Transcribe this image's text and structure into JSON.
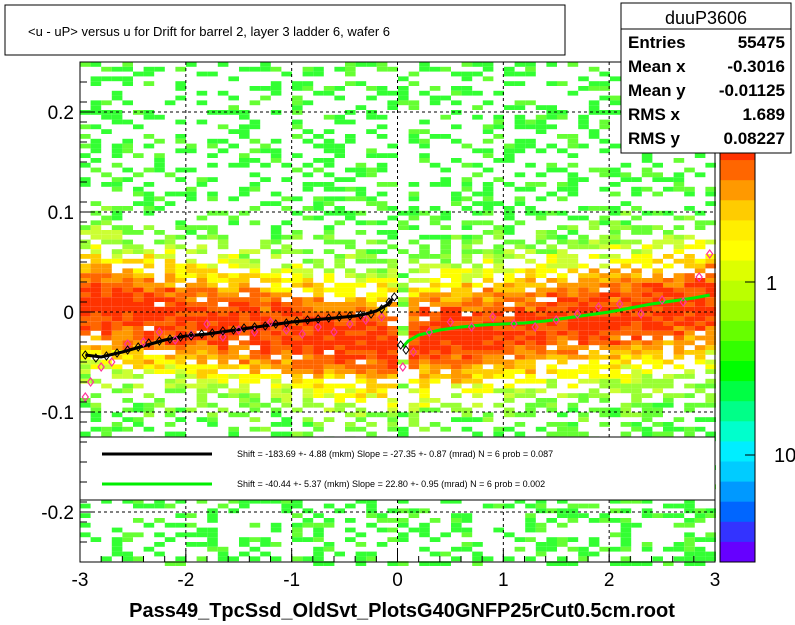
{
  "chart_data": {
    "type": "heatmap",
    "title": "<u - uP>       versus   u for Drift for barrel 2, layer 3 ladder 6, wafer 6",
    "xlabel": "Pass49_TpcSsd_OldSvt_PlotsG40GNFP25rCut0.5cm.root",
    "ylabel": "",
    "xlim": [
      -3,
      3
    ],
    "ylim": [
      -0.25,
      0.25
    ],
    "x_ticks": [
      "-3",
      "-2",
      "-1",
      "0",
      "1",
      "2",
      "3"
    ],
    "y_ticks": [
      "-0.2",
      "-0.1",
      "0",
      "0.1",
      "0.2"
    ],
    "x_tick_values": [
      -3,
      -2,
      -1,
      0,
      1,
      2,
      3
    ],
    "y_tick_values": [
      -0.2,
      -0.1,
      0,
      0.1,
      0.2
    ],
    "grid": true,
    "log_z": true,
    "color_scale_labels": [
      "1",
      "10"
    ],
    "color_scale_label_values": [
      1,
      10
    ],
    "color_scale_partial_label": "0",
    "stats": {
      "name": "duuP3606",
      "rows": [
        {
          "label": "Entries",
          "value": "55475"
        },
        {
          "label": "Mean x",
          "value": "-0.3016"
        },
        {
          "label": "Mean y",
          "value": "-0.01125"
        },
        {
          "label": "RMS x",
          "value": "1.689"
        },
        {
          "label": "RMS y",
          "value": "0.08227"
        }
      ]
    },
    "fits": [
      {
        "color": "#000000",
        "text": "Shift =  -183.69 +- 4.88 (mkm) Slope =   -27.35 +- 0.87 (mrad)  N = 6 prob = 0.087"
      },
      {
        "color": "#00ee00",
        "text": "Shift =   -40.44 +- 5.37 (mkm) Slope =    22.80 +- 0.95 (mrad)  N = 6 prob = 0.002"
      }
    ],
    "series": [
      {
        "color": "#000000",
        "x": [
          -2.95,
          -2.8,
          -2.6,
          -2.4,
          -2.2,
          -2.0,
          -1.8,
          -1.6,
          -1.4,
          -1.2,
          -1.0,
          -0.8,
          -0.6,
          -0.4,
          -0.3,
          -0.2,
          -0.1,
          -0.05
        ],
        "y": [
          -0.043,
          -0.045,
          -0.04,
          -0.034,
          -0.028,
          -0.024,
          -0.022,
          -0.019,
          -0.016,
          -0.013,
          -0.01,
          -0.008,
          -0.006,
          -0.004,
          -0.002,
          0.001,
          0.007,
          0.013
        ]
      },
      {
        "color": "#00ee00",
        "x": [
          0.05,
          0.1,
          0.2,
          0.4,
          0.6,
          0.8,
          1.0,
          1.2,
          1.4,
          1.6,
          1.8,
          2.0,
          2.2,
          2.4,
          2.6,
          2.8,
          2.95
        ],
        "y": [
          -0.035,
          -0.029,
          -0.023,
          -0.018,
          -0.015,
          -0.013,
          -0.012,
          -0.011,
          -0.009,
          -0.006,
          -0.003,
          0.0,
          0.004,
          0.008,
          0.011,
          0.014,
          0.017
        ]
      }
    ],
    "markers_black": {
      "x": [
        -2.95,
        -2.85,
        -2.75,
        -2.65,
        -2.55,
        -2.45,
        -2.35,
        -2.25,
        -2.15,
        -2.05,
        -1.95,
        -1.85,
        -1.75,
        -1.65,
        -1.55,
        -1.45,
        -1.35,
        -1.25,
        -1.15,
        -1.05,
        -0.95,
        -0.85,
        -0.75,
        -0.65,
        -0.55,
        -0.45,
        -0.35,
        -0.25,
        -0.15,
        -0.08,
        -0.03,
        0.03,
        0.08
      ],
      "y": [
        -0.043,
        -0.046,
        -0.044,
        -0.041,
        -0.038,
        -0.035,
        -0.031,
        -0.029,
        -0.027,
        -0.025,
        -0.024,
        -0.022,
        -0.021,
        -0.019,
        -0.018,
        -0.016,
        -0.015,
        -0.014,
        -0.012,
        -0.011,
        -0.009,
        -0.008,
        -0.007,
        -0.006,
        -0.005,
        -0.004,
        -0.003,
        -0.002,
        0.003,
        0.01,
        0.015,
        -0.033,
        -0.038
      ]
    },
    "markers_pink": {
      "x": [
        -2.95,
        -2.9,
        -2.8,
        -2.7,
        -2.55,
        -2.4,
        -2.25,
        -2.1,
        -1.95,
        -1.8,
        -1.65,
        -1.5,
        -1.35,
        -1.2,
        -1.05,
        -0.9,
        -0.75,
        -0.6,
        -0.45,
        -0.3,
        -0.15,
        0.05,
        0.15,
        0.3,
        0.5,
        0.7,
        0.9,
        1.1,
        1.3,
        1.5,
        1.7,
        1.9,
        2.1,
        2.3,
        2.5,
        2.7,
        2.85,
        2.95
      ],
      "y": [
        -0.085,
        -0.07,
        -0.055,
        -0.05,
        -0.032,
        -0.03,
        -0.02,
        -0.028,
        -0.023,
        -0.012,
        -0.025,
        -0.018,
        -0.02,
        -0.01,
        -0.018,
        -0.022,
        -0.015,
        -0.02,
        -0.012,
        -0.008,
        -0.005,
        -0.055,
        -0.04,
        -0.02,
        -0.01,
        -0.015,
        -0.005,
        -0.012,
        -0.015,
        -0.008,
        -0.002,
        0.005,
        0.008,
        -0.002,
        0.012,
        0.01,
        0.035,
        0.058
      ]
    }
  }
}
